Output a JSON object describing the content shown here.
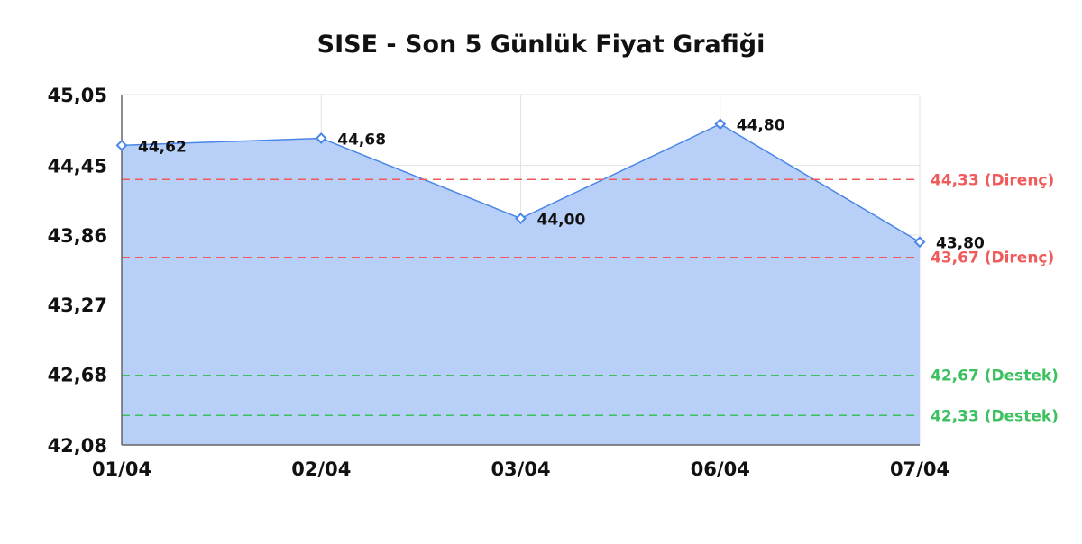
{
  "chart_data": {
    "type": "area",
    "title": "SISE - Son 5 Günlük Fiyat Grafiği",
    "categories": [
      "01/04",
      "02/04",
      "03/04",
      "06/04",
      "07/04"
    ],
    "values": [
      44.62,
      44.68,
      44.0,
      44.8,
      43.8
    ],
    "value_labels": [
      "44,62",
      "44,68",
      "44,00",
      "44,80",
      "43,80"
    ],
    "ylim": [
      42.08,
      45.05
    ],
    "yticks": [
      45.05,
      44.45,
      43.86,
      43.27,
      42.68,
      42.08
    ],
    "ytick_labels": [
      "45,05",
      "44,45",
      "43,86",
      "43,27",
      "42,68",
      "42,08"
    ],
    "grid": true,
    "reference_lines": [
      {
        "value": 44.33,
        "label": "44,33 (Direnç)",
        "color": "#f05a5a"
      },
      {
        "value": 43.67,
        "label": "43,67 (Direnç)",
        "color": "#f05a5a"
      },
      {
        "value": 42.67,
        "label": "42,67 (Destek)",
        "color": "#3cc060"
      },
      {
        "value": 42.33,
        "label": "42,33 (Destek)",
        "color": "#3cc060"
      }
    ],
    "colors": {
      "line": "#4a86e8",
      "fill": "#b8d0f8"
    }
  }
}
